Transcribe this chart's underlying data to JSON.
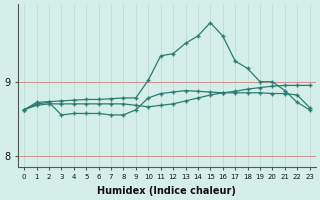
{
  "xlabel": "Humidex (Indice chaleur)",
  "x_values": [
    0,
    1,
    2,
    3,
    4,
    5,
    6,
    7,
    8,
    9,
    10,
    11,
    12,
    13,
    14,
    15,
    16,
    17,
    18,
    19,
    20,
    21,
    22,
    23
  ],
  "line1_y": [
    8.62,
    8.72,
    8.73,
    8.74,
    8.75,
    8.76,
    8.76,
    8.77,
    8.78,
    8.78,
    9.02,
    9.35,
    9.38,
    9.52,
    9.62,
    9.8,
    9.62,
    9.28,
    9.18,
    9.0,
    9.0,
    8.88,
    8.72,
    8.62
  ],
  "line2_y": [
    8.62,
    8.68,
    8.7,
    8.7,
    8.7,
    8.7,
    8.7,
    8.7,
    8.7,
    8.68,
    8.66,
    8.68,
    8.7,
    8.74,
    8.78,
    8.82,
    8.85,
    8.87,
    8.9,
    8.92,
    8.94,
    8.95,
    8.95,
    8.95
  ],
  "line3_y": [
    8.62,
    8.7,
    8.72,
    8.55,
    8.57,
    8.57,
    8.57,
    8.55,
    8.55,
    8.62,
    8.78,
    8.84,
    8.86,
    8.88,
    8.87,
    8.86,
    8.85,
    8.85,
    8.85,
    8.85,
    8.84,
    8.84,
    8.82,
    8.65
  ],
  "line_color": "#2e7c70",
  "bg_color": "#d4eeea",
  "grid_color_v": "#c0dcd8",
  "grid_color_h": "#d08080",
  "ylim": [
    7.85,
    10.05
  ],
  "yticks": [
    8,
    9
  ],
  "xlim": [
    -0.5,
    23.5
  ]
}
